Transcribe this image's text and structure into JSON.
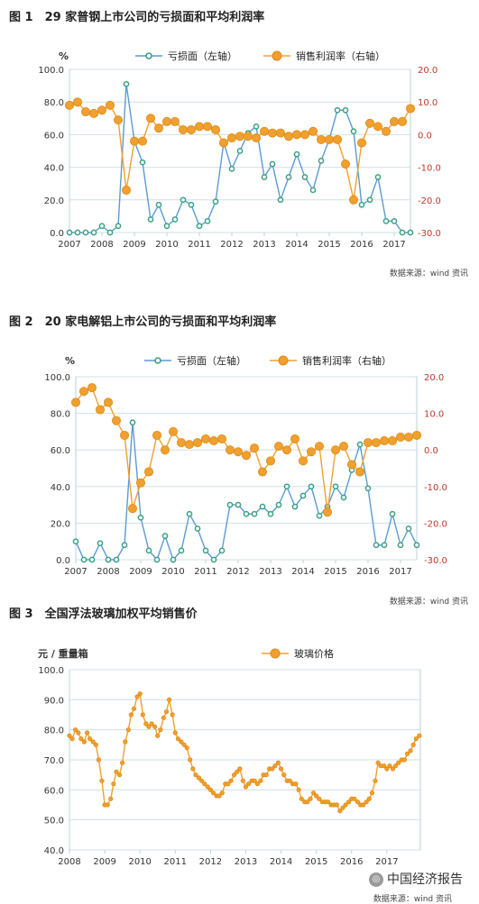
{
  "figures": [
    {
      "title": "图 1　29 家普钢上市公司的亏损面和平均利润率",
      "source": "数据来源：wind 资讯",
      "chart_data": {
        "type": "line",
        "left_unit": "%",
        "legend": [
          "亏损面（左轴）",
          "销售利润率（右轴）"
        ],
        "x_ticks": [
          "2007",
          "2008",
          "2009",
          "2010",
          "2011",
          "2012",
          "2013",
          "2014",
          "2015",
          "2016",
          "2017"
        ],
        "x_range": [
          2007.0,
          2017.5
        ],
        "left_axis": {
          "ticks": [
            "0.0",
            "20.0",
            "40.0",
            "60.0",
            "80.0",
            "100.0"
          ],
          "range": [
            0,
            100
          ]
        },
        "right_axis": {
          "ticks": [
            "-30.0",
            "-20.0",
            "-10.0",
            "0.0",
            "10.0",
            "20.0"
          ],
          "range": [
            -30,
            20
          ]
        },
        "series": [
          {
            "name": "亏损面（左轴）",
            "axis": "left",
            "color": "#3aa184",
            "marker": "hollow",
            "x": [
              2007.0,
              2007.25,
              2007.5,
              2007.75,
              2008.0,
              2008.25,
              2008.5,
              2008.75,
              2009.0,
              2009.25,
              2009.5,
              2009.75,
              2010.0,
              2010.25,
              2010.5,
              2010.75,
              2011.0,
              2011.25,
              2011.5,
              2011.75,
              2012.0,
              2012.25,
              2012.5,
              2012.75,
              2013.0,
              2013.25,
              2013.5,
              2013.75,
              2014.0,
              2014.25,
              2014.5,
              2014.75,
              2015.0,
              2015.25,
              2015.5,
              2015.75,
              2016.0,
              2016.25,
              2016.5,
              2016.75,
              2017.0,
              2017.25,
              2017.5
            ],
            "y": [
              0,
              0,
              0,
              0,
              4,
              0,
              4,
              91,
              56,
              43,
              8,
              17,
              4,
              8,
              20,
              17,
              4,
              7,
              19,
              55,
              39,
              50,
              61,
              65,
              34,
              42,
              20,
              34,
              48,
              34,
              26,
              44,
              57,
              75,
              75,
              62,
              17,
              20,
              34,
              7,
              7,
              0,
              0
            ]
          },
          {
            "name": "销售利润率（右轴）",
            "axis": "right",
            "color": "#f0a030",
            "marker": "filled",
            "x": [
              2007.0,
              2007.25,
              2007.5,
              2007.75,
              2008.0,
              2008.25,
              2008.5,
              2008.75,
              2009.0,
              2009.25,
              2009.5,
              2009.75,
              2010.0,
              2010.25,
              2010.5,
              2010.75,
              2011.0,
              2011.25,
              2011.5,
              2011.75,
              2012.0,
              2012.25,
              2012.5,
              2012.75,
              2013.0,
              2013.25,
              2013.5,
              2013.75,
              2014.0,
              2014.25,
              2014.5,
              2014.75,
              2015.0,
              2015.25,
              2015.5,
              2015.75,
              2016.0,
              2016.25,
              2016.5,
              2016.75,
              2017.0,
              2017.25,
              2017.5
            ],
            "y": [
              9,
              10,
              7,
              6.5,
              7.5,
              9,
              4.5,
              -17,
              -2,
              -2,
              5,
              2,
              4,
              4,
              1.5,
              1.5,
              2.5,
              2.5,
              1.5,
              -2.5,
              -1,
              -0.5,
              -0.5,
              -1,
              1,
              0.5,
              0.5,
              -0.5,
              0,
              0,
              1,
              -1.5,
              -1.5,
              -1.5,
              -9,
              -20,
              -2.5,
              3.5,
              2.5,
              1,
              4,
              4,
              8
            ]
          }
        ]
      }
    },
    {
      "title": "图 2　20 家电解铝上市公司的亏损面和平均利润率",
      "source": "数据来源：wind 资讯",
      "chart_data": {
        "type": "line",
        "left_unit": "%",
        "legend": [
          "亏损面（左轴）",
          "销售利润率（右轴）"
        ],
        "x_ticks": [
          "2007",
          "2008",
          "2009",
          "2010",
          "2011",
          "2012",
          "2013",
          "2014",
          "2015",
          "2016",
          "2017"
        ],
        "x_range": [
          2007.0,
          2017.5
        ],
        "left_axis": {
          "ticks": [
            "0.0",
            "20.0",
            "40.0",
            "60.0",
            "80.0",
            "100.0"
          ],
          "range": [
            0,
            100
          ]
        },
        "right_axis": {
          "ticks": [
            "-30.0",
            "-20.0",
            "-10.0",
            "0.0",
            "10.0",
            "20.0"
          ],
          "range": [
            -30,
            20
          ]
        },
        "series": [
          {
            "name": "亏损面（左轴）",
            "axis": "left",
            "color": "#3aa184",
            "marker": "hollow",
            "x": [
              2007.0,
              2007.25,
              2007.5,
              2007.75,
              2008.0,
              2008.25,
              2008.5,
              2008.75,
              2009.0,
              2009.25,
              2009.5,
              2009.75,
              2010.0,
              2010.25,
              2010.5,
              2010.75,
              2011.0,
              2011.25,
              2011.5,
              2011.75,
              2012.0,
              2012.25,
              2012.5,
              2012.75,
              2013.0,
              2013.25,
              2013.5,
              2013.75,
              2014.0,
              2014.25,
              2014.5,
              2014.75,
              2015.0,
              2015.25,
              2015.5,
              2015.75,
              2016.0,
              2016.25,
              2016.5,
              2016.75,
              2017.0,
              2017.25,
              2017.5
            ],
            "y": [
              10,
              0,
              0,
              9,
              0,
              0,
              8,
              75,
              23,
              5,
              0,
              13,
              0,
              5,
              25,
              17,
              5,
              0,
              5,
              30,
              30,
              25,
              25,
              29,
              25,
              30,
              40,
              29,
              35,
              40,
              24,
              29,
              40,
              34,
              49,
              63,
              39,
              8,
              8,
              25,
              8,
              17,
              8
            ]
          },
          {
            "name": "销售利润率（右轴）",
            "axis": "right",
            "color": "#f0a030",
            "marker": "filled",
            "x": [
              2007.0,
              2007.25,
              2007.5,
              2007.75,
              2008.0,
              2008.25,
              2008.5,
              2008.75,
              2009.0,
              2009.25,
              2009.5,
              2009.75,
              2010.0,
              2010.25,
              2010.5,
              2010.75,
              2011.0,
              2011.25,
              2011.5,
              2011.75,
              2012.0,
              2012.25,
              2012.5,
              2012.75,
              2013.0,
              2013.25,
              2013.5,
              2013.75,
              2014.0,
              2014.25,
              2014.5,
              2014.75,
              2015.0,
              2015.25,
              2015.5,
              2015.75,
              2016.0,
              2016.25,
              2016.5,
              2016.75,
              2017.0,
              2017.25,
              2017.5
            ],
            "y": [
              13,
              16,
              17,
              11,
              13,
              8,
              4,
              -16,
              -9,
              -6,
              4,
              0,
              5,
              2,
              1.5,
              2,
              3,
              2.5,
              3,
              0,
              -0.5,
              -1.5,
              0.5,
              -6,
              -3,
              1,
              0,
              3,
              -3,
              -0.5,
              1,
              -17,
              0,
              1,
              -4,
              -6,
              2,
              2,
              2.5,
              2.5,
              3.5,
              3.5,
              4
            ]
          }
        ]
      }
    },
    {
      "title": "图 3　全国浮法玻璃加权平均销售价",
      "source": "数据来源：wind 资讯",
      "chart_data": {
        "type": "line",
        "left_unit": "元 / 重量箱",
        "legend": [
          "玻璃价格"
        ],
        "x_ticks": [
          "2008",
          "2009",
          "2010",
          "2011",
          "2012",
          "2013",
          "2014",
          "2015",
          "2016",
          "2017"
        ],
        "x_range": [
          2008.0,
          2017.95
        ],
        "left_axis": {
          "ticks": [
            "40.0",
            "50.0",
            "60.0",
            "70.0",
            "80.0",
            "90.0",
            "100.0"
          ],
          "range": [
            40,
            100
          ]
        },
        "series": [
          {
            "name": "玻璃价格",
            "axis": "left",
            "color": "#f0a030",
            "marker": "filled",
            "x": [
              2008.0,
              2008.08,
              2008.17,
              2008.25,
              2008.33,
              2008.42,
              2008.5,
              2008.58,
              2008.67,
              2008.75,
              2008.83,
              2008.92,
              2009.0,
              2009.08,
              2009.17,
              2009.25,
              2009.33,
              2009.42,
              2009.5,
              2009.58,
              2009.67,
              2009.75,
              2009.83,
              2009.92,
              2010.0,
              2010.08,
              2010.17,
              2010.25,
              2010.33,
              2010.42,
              2010.5,
              2010.58,
              2010.67,
              2010.75,
              2010.83,
              2010.92,
              2011.0,
              2011.08,
              2011.17,
              2011.25,
              2011.33,
              2011.42,
              2011.5,
              2011.58,
              2011.67,
              2011.75,
              2011.83,
              2011.92,
              2012.0,
              2012.08,
              2012.17,
              2012.25,
              2012.33,
              2012.42,
              2012.5,
              2012.58,
              2012.67,
              2012.75,
              2012.83,
              2012.92,
              2013.0,
              2013.08,
              2013.17,
              2013.25,
              2013.33,
              2013.42,
              2013.5,
              2013.58,
              2013.67,
              2013.75,
              2013.83,
              2013.92,
              2014.0,
              2014.08,
              2014.17,
              2014.25,
              2014.33,
              2014.42,
              2014.5,
              2014.58,
              2014.67,
              2014.75,
              2014.83,
              2014.92,
              2015.0,
              2015.08,
              2015.17,
              2015.25,
              2015.33,
              2015.42,
              2015.5,
              2015.58,
              2015.67,
              2015.75,
              2015.83,
              2015.92,
              2016.0,
              2016.08,
              2016.17,
              2016.25,
              2016.33,
              2016.42,
              2016.5,
              2016.58,
              2016.67,
              2016.75,
              2016.83,
              2016.92,
              2017.0,
              2017.08,
              2017.17,
              2017.25,
              2017.33,
              2017.42,
              2017.5,
              2017.58,
              2017.67,
              2017.75,
              2017.83,
              2017.92
            ],
            "y": [
              78,
              77,
              80,
              79,
              77,
              76,
              79,
              77,
              76,
              75,
              70,
              63,
              55,
              55,
              57,
              62,
              66,
              65,
              69,
              76,
              80,
              85,
              87,
              91,
              92,
              85,
              82,
              81,
              82,
              81,
              78,
              80,
              84,
              86,
              90,
              85,
              79,
              77,
              76,
              75,
              74,
              70,
              67,
              65,
              64,
              63,
              62,
              61,
              60,
              59,
              58,
              58,
              59,
              62,
              62,
              63,
              65,
              66,
              67,
              63,
              61,
              62,
              63,
              63,
              62,
              63,
              65,
              65,
              67,
              67,
              68,
              69,
              67,
              65,
              63,
              63,
              62,
              62,
              60,
              57,
              56,
              56,
              57,
              59,
              58,
              57,
              56,
              56,
              56,
              55,
              55,
              55,
              53,
              54,
              55,
              56,
              57,
              57,
              56,
              55,
              55,
              56,
              57,
              59,
              63,
              69,
              68,
              68,
              67,
              68,
              67,
              68,
              69,
              70,
              70,
              72,
              73,
              75,
              77,
              78
            ]
          }
        ]
      }
    }
  ],
  "watermark": {
    "icon": "wechat-icon",
    "text": "中国经济报告",
    "source": "数据来源：wind 资讯"
  }
}
